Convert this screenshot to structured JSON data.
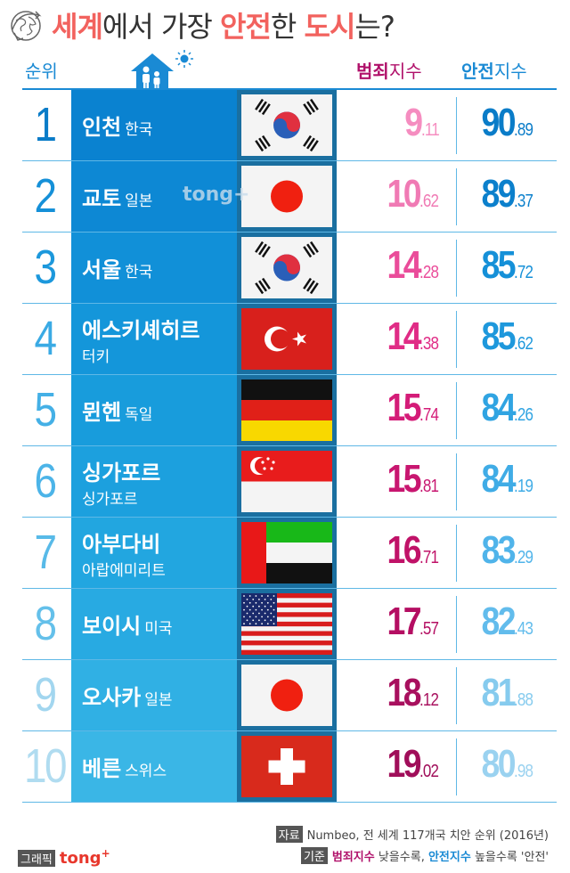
{
  "title": {
    "parts": [
      {
        "text": "세계",
        "highlight": true
      },
      {
        "text": "에서 가장 ",
        "highlight": false
      },
      {
        "text": "안전",
        "highlight": true
      },
      {
        "text": "한 ",
        "highlight": false
      },
      {
        "text": "도시",
        "highlight": true
      },
      {
        "text": "는?",
        "highlight": false
      }
    ],
    "icon": "globe-icon"
  },
  "header": {
    "rank_label": "순위",
    "crime_label_bold": "범죄",
    "crime_label_sub": "지수",
    "safety_label_bold": "안전",
    "safety_label_sub": "지수",
    "icon": "house-family-icon"
  },
  "watermark": "tong+",
  "rows": [
    {
      "rank": "1",
      "city": "인천",
      "country": "한국",
      "country_newline": false,
      "flag": "korea",
      "crime_int": "9",
      "crime_dec": ".11",
      "safety_int": "90",
      "safety_dec": ".89",
      "rank_color": "#0a7cc8",
      "panel_color": "#0a82d0",
      "crime_color": "#f58dc0",
      "safety_color": "#0a7cc8"
    },
    {
      "rank": "2",
      "city": "교토",
      "country": "일본",
      "country_newline": false,
      "flag": "japan",
      "crime_int": "10",
      "crime_dec": ".62",
      "safety_int": "89",
      "safety_dec": ".37",
      "rank_color": "#1590d8",
      "panel_color": "#0d88d4",
      "crime_color": "#f07ab4",
      "safety_color": "#0c80cc"
    },
    {
      "rank": "3",
      "city": "서울",
      "country": "한국",
      "country_newline": false,
      "flag": "korea",
      "crime_int": "14",
      "crime_dec": ".28",
      "safety_int": "85",
      "safety_dec": ".72",
      "rank_color": "#1c98dc",
      "panel_color": "#1190d8",
      "crime_color": "#ea4c9a",
      "safety_color": "#1590d8"
    },
    {
      "rank": "4",
      "city": "에스키셰히르",
      "country": "터키",
      "country_newline": true,
      "flag": "turkey",
      "crime_int": "14",
      "crime_dec": ".38",
      "safety_int": "85",
      "safety_dec": ".62",
      "rank_color": "#3aaae4",
      "panel_color": "#1496da",
      "crime_color": "#e02c86",
      "safety_color": "#1e98dc"
    },
    {
      "rank": "5",
      "city": "뮌헨",
      "country": "독일",
      "country_newline": false,
      "flag": "germany",
      "crime_int": "15",
      "crime_dec": ".74",
      "safety_int": "84",
      "safety_dec": ".26",
      "rank_color": "#44b0e6",
      "panel_color": "#189cdc",
      "crime_color": "#d41c78",
      "safety_color": "#30a4e2"
    },
    {
      "rank": "6",
      "city": "싱가포르",
      "country": "싱가포르",
      "country_newline": true,
      "flag": "singapore",
      "crime_int": "15",
      "crime_dec": ".81",
      "safety_int": "84",
      "safety_dec": ".19",
      "rank_color": "#4cb4e8",
      "panel_color": "#1ca0de",
      "crime_color": "#c81670",
      "safety_color": "#40ace6"
    },
    {
      "rank": "7",
      "city": "아부다비",
      "country": "아랍에미리트",
      "country_newline": true,
      "flag": "uae",
      "crime_int": "16",
      "crime_dec": ".71",
      "safety_int": "83",
      "safety_dec": ".29",
      "rank_color": "#58bae8",
      "panel_color": "#22a6e0",
      "crime_color": "#c01268",
      "safety_color": "#50b4ea"
    },
    {
      "rank": "8",
      "city": "보이시",
      "country": "미국",
      "country_newline": false,
      "flag": "usa",
      "crime_int": "17",
      "crime_dec": ".57",
      "safety_int": "82",
      "safety_dec": ".43",
      "rank_color": "#64c0ea",
      "panel_color": "#28aae2",
      "crime_color": "#b40e62",
      "safety_color": "#62bcec"
    },
    {
      "rank": "9",
      "city": "오사카",
      "country": "일본",
      "country_newline": false,
      "flag": "japan",
      "crime_int": "18",
      "crime_dec": ".12",
      "safety_int": "81",
      "safety_dec": ".88",
      "rank_color": "#a2d6ef",
      "panel_color": "#30b0e4",
      "crime_color": "#a8105e",
      "safety_color": "#86cbee"
    },
    {
      "rank": "10",
      "city": "베른",
      "country": "스위스",
      "country_newline": false,
      "flag": "switzerland",
      "crime_int": "19",
      "crime_dec": ".02",
      "safety_int": "80",
      "safety_dec": ".98",
      "rank_color": "#b0dcf0",
      "panel_color": "#3ab6e6",
      "crime_color": "#a00e5a",
      "safety_color": "#9ad2f0"
    }
  ],
  "footer": {
    "source_tag": "자료",
    "source_text": "Numbeo, 전 세계 117개국 치안 순위 (2016년)",
    "criteria_tag": "기준",
    "criteria_crime": "범죄지수",
    "criteria_mid": " 낮을수록, ",
    "criteria_safety": "안전지수",
    "criteria_end": " 높을수록 '안전'",
    "credit_tag": "그래픽",
    "brand": "tong",
    "brand_sup": "+"
  },
  "colors": {
    "title_highlight": "#f2625e",
    "header_blue": "#1a8ad4",
    "header_magenta": "#b0106a",
    "flag_frame": "#1a6fa0"
  }
}
